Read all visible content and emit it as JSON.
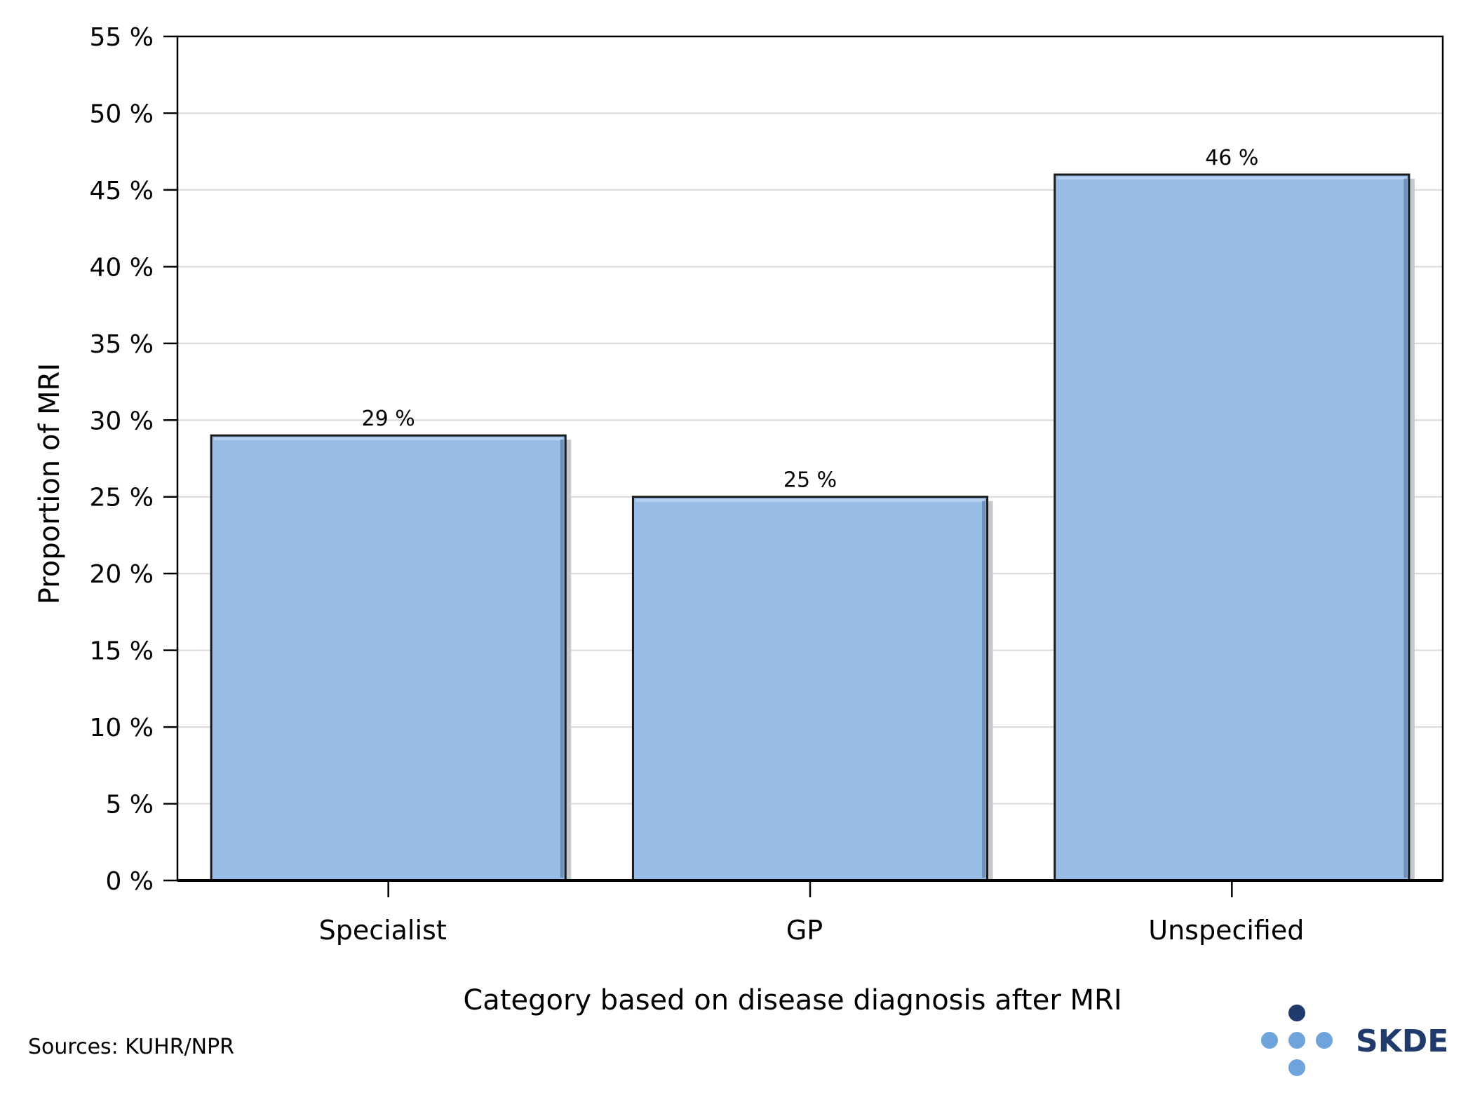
{
  "chart_data": {
    "type": "bar",
    "categories": [
      "Specialist",
      "GP",
      "Unspecified"
    ],
    "values": [
      29,
      25,
      46
    ],
    "data_labels": [
      "29 %",
      "25 %",
      "46 %"
    ],
    "title": "",
    "xlabel": "Category based on disease diagnosis after MRI",
    "ylabel": "Proportion of MRI",
    "ylim": [
      0,
      55
    ],
    "yticks": [
      0,
      5,
      10,
      15,
      20,
      25,
      30,
      35,
      40,
      45,
      50,
      55
    ],
    "ytick_labels": [
      "0 %",
      "5 %",
      "10 %",
      "15 %",
      "20 %",
      "25 %",
      "30 %",
      "35 %",
      "40 %",
      "45 %",
      "50 %",
      "55 %"
    ],
    "grid": true,
    "legend": "none",
    "colors": {
      "bar_fill": "#98bce6",
      "bar_edge": "#1a1a1a",
      "grid": "#d9d9d9"
    }
  },
  "footer": {
    "source": "Sources: KUHR/NPR"
  },
  "logo": {
    "text": "SKDE",
    "colors": {
      "dark": "#1f3a6b",
      "light": "#6fa3dc"
    }
  }
}
